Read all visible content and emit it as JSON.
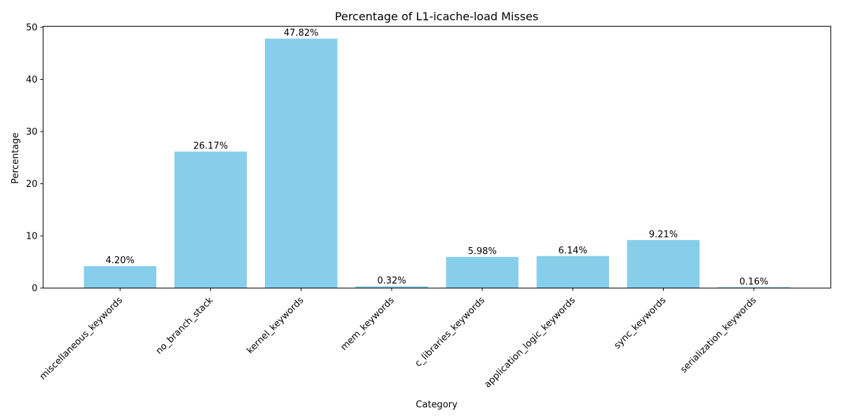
{
  "chart_data": {
    "type": "bar",
    "title": "Percentage of L1-icache-load Misses",
    "xlabel": "Category",
    "ylabel": "Percentage",
    "categories": [
      "miscellaneous_keywords",
      "no_branch_stack",
      "kernel_keywords",
      "mem_keywords",
      "c_libraries_keywords",
      "application_logic_keywords",
      "sync_keywords",
      "serialization_keywords"
    ],
    "values": [
      4.2,
      26.17,
      47.82,
      0.32,
      5.98,
      6.14,
      9.21,
      0.16
    ],
    "data_labels": [
      "4.20%",
      "26.17%",
      "47.82%",
      "0.32%",
      "5.98%",
      "6.14%",
      "9.21%",
      "0.16%"
    ],
    "ylim": [
      0,
      50.2
    ],
    "yticks": [
      0,
      10,
      20,
      30,
      40,
      50
    ],
    "bar_color": "#87ceeb",
    "grid": false,
    "legend": false
  }
}
